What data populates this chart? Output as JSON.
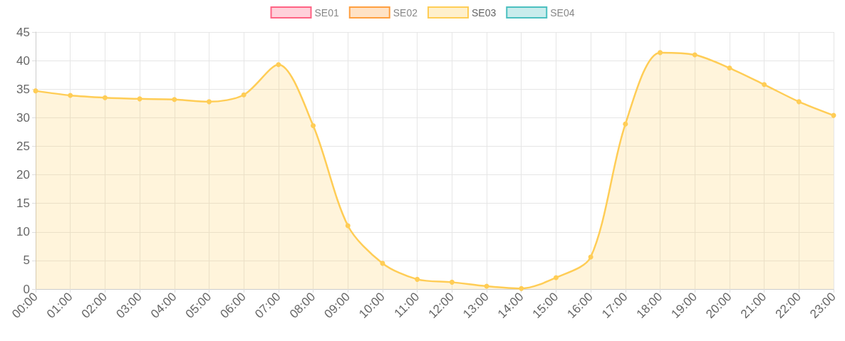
{
  "chart_data": {
    "type": "area",
    "categories": [
      "00:00",
      "01:00",
      "02:00",
      "03:00",
      "04:00",
      "05:00",
      "06:00",
      "07:00",
      "08:00",
      "09:00",
      "10:00",
      "11:00",
      "12:00",
      "13:00",
      "14:00",
      "15:00",
      "16:00",
      "17:00",
      "18:00",
      "19:00",
      "20:00",
      "21:00",
      "22:00",
      "23:00"
    ],
    "series": [
      {
        "name": "SE01",
        "color": "#ff6384",
        "values": [
          null,
          null,
          null,
          null,
          null,
          null,
          null,
          null,
          null,
          null,
          null,
          null,
          null,
          null,
          null,
          null,
          null,
          null,
          null,
          null,
          null,
          null,
          null,
          null
        ]
      },
      {
        "name": "SE02",
        "color": "#ff9f40",
        "values": [
          null,
          null,
          null,
          null,
          null,
          null,
          null,
          null,
          null,
          null,
          null,
          null,
          null,
          null,
          null,
          null,
          null,
          null,
          null,
          null,
          null,
          null,
          null,
          null
        ]
      },
      {
        "name": "SE03",
        "color": "#ffcd56",
        "values": [
          34.7,
          33.9,
          33.5,
          33.3,
          33.2,
          32.8,
          34.0,
          39.3,
          28.6,
          11.1,
          4.5,
          1.7,
          1.2,
          0.5,
          0.1,
          2.0,
          5.6,
          28.9,
          41.4,
          41.0,
          38.7,
          35.8,
          32.8,
          30.4
        ]
      },
      {
        "name": "SE04",
        "color": "#4bc0c0",
        "values": [
          null,
          null,
          null,
          null,
          null,
          null,
          null,
          null,
          null,
          null,
          null,
          null,
          null,
          null,
          null,
          null,
          null,
          null,
          null,
          null,
          null,
          null,
          null,
          null
        ]
      }
    ],
    "ylim": [
      0,
      45
    ],
    "yticks": [
      0,
      5,
      10,
      15,
      20,
      25,
      30,
      35,
      40,
      45
    ],
    "grid": true,
    "legend": "top",
    "marker": "circle",
    "line_style": "solid"
  }
}
